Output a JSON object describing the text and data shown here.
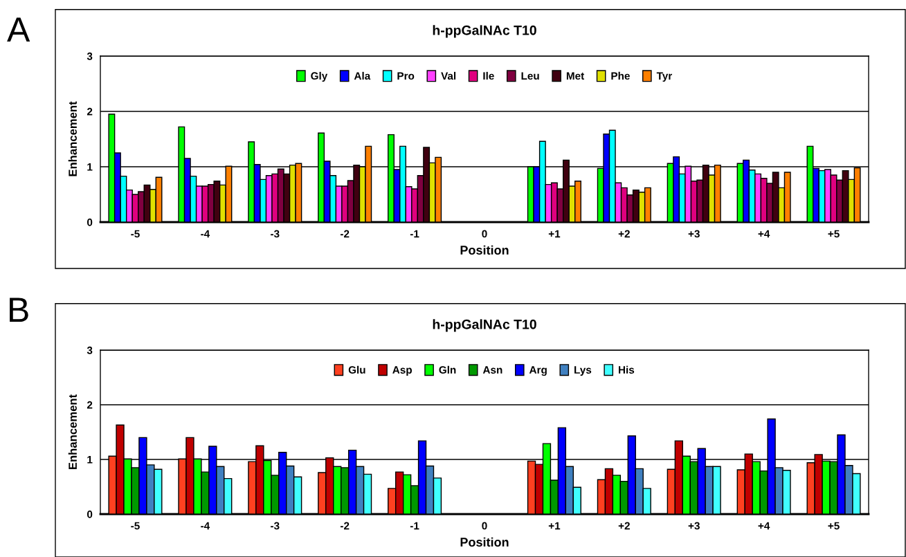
{
  "chart_data": [
    {
      "type": "bar",
      "title": "h-ppGalNAc T10",
      "xlabel": "Position",
      "ylabel": "Enhancement",
      "annotations": [
        "A"
      ],
      "categories": [
        "-5",
        "-4",
        "-3",
        "-2",
        "-1",
        "0",
        "+1",
        "+2",
        "+3",
        "+4",
        "+5"
      ],
      "ylim": [
        0,
        3
      ],
      "yticks": [
        0,
        1,
        2,
        3
      ],
      "grid": "y",
      "legend": "top",
      "series": [
        {
          "name": "Gly",
          "color": "#00ff00",
          "values": [
            1.95,
            1.72,
            1.45,
            1.61,
            1.58,
            null,
            1.0,
            0.97,
            1.06,
            1.06,
            1.37
          ]
        },
        {
          "name": "Ala",
          "color": "#0000ff",
          "values": [
            1.25,
            1.15,
            1.04,
            1.1,
            0.95,
            null,
            1.0,
            1.59,
            1.18,
            1.12,
            0.97
          ]
        },
        {
          "name": "Pro",
          "color": "#00ffff",
          "values": [
            0.83,
            0.83,
            0.77,
            0.84,
            1.37,
            null,
            1.46,
            1.66,
            0.87,
            0.94,
            0.93
          ]
        },
        {
          "name": "Val",
          "color": "#ff40ff",
          "values": [
            0.58,
            0.65,
            0.84,
            0.65,
            0.64,
            null,
            0.68,
            0.71,
            1.01,
            0.87,
            0.95
          ]
        },
        {
          "name": "Ile",
          "color": "#e0007f",
          "values": [
            0.5,
            0.65,
            0.87,
            0.65,
            0.6,
            null,
            0.71,
            0.62,
            0.74,
            0.79,
            0.85
          ]
        },
        {
          "name": "Leu",
          "color": "#800040",
          "values": [
            0.55,
            0.68,
            0.96,
            0.75,
            0.84,
            null,
            0.6,
            0.49,
            0.76,
            0.7,
            0.76
          ]
        },
        {
          "name": "Met",
          "color": "#400010",
          "values": [
            0.67,
            0.74,
            0.87,
            1.03,
            1.35,
            null,
            1.12,
            0.58,
            1.03,
            0.9,
            0.93
          ]
        },
        {
          "name": "Phe",
          "color": "#e0e000",
          "values": [
            0.59,
            0.67,
            1.03,
            1.0,
            1.07,
            null,
            0.65,
            0.54,
            0.85,
            0.62,
            0.77
          ]
        },
        {
          "name": "Tyr",
          "color": "#ff8000",
          "values": [
            0.81,
            1.01,
            1.06,
            1.37,
            1.17,
            null,
            0.74,
            0.62,
            1.03,
            0.9,
            0.98
          ]
        }
      ]
    },
    {
      "type": "bar",
      "title": "h-ppGalNAc T10",
      "xlabel": "Position",
      "ylabel": "Enhancement",
      "annotations": [
        "B"
      ],
      "categories": [
        "-5",
        "-4",
        "-3",
        "-2",
        "-1",
        "0",
        "+1",
        "+2",
        "+3",
        "+4",
        "+5"
      ],
      "ylim": [
        0,
        3
      ],
      "yticks": [
        0,
        1,
        2,
        3
      ],
      "grid": "y",
      "legend": "top",
      "series": [
        {
          "name": "Glu",
          "color": "#ff4020",
          "values": [
            1.06,
            1.01,
            0.96,
            0.76,
            0.47,
            null,
            0.97,
            0.63,
            0.82,
            0.81,
            0.94
          ]
        },
        {
          "name": "Asp",
          "color": "#c00000",
          "values": [
            1.63,
            1.4,
            1.25,
            1.03,
            0.77,
            null,
            0.91,
            0.83,
            1.34,
            1.1,
            1.09
          ]
        },
        {
          "name": "Gln",
          "color": "#00ff00",
          "values": [
            1.01,
            1.01,
            0.98,
            0.87,
            0.72,
            null,
            1.29,
            0.71,
            1.06,
            0.96,
            0.97
          ]
        },
        {
          "name": "Asn",
          "color": "#009900",
          "values": [
            0.85,
            0.77,
            0.71,
            0.85,
            0.52,
            null,
            0.62,
            0.6,
            0.96,
            0.79,
            0.96
          ]
        },
        {
          "name": "Arg",
          "color": "#0000ff",
          "values": [
            1.4,
            1.24,
            1.13,
            1.17,
            1.34,
            null,
            1.58,
            1.43,
            1.2,
            1.74,
            1.45
          ]
        },
        {
          "name": "Lys",
          "color": "#4080c0",
          "values": [
            0.9,
            0.87,
            0.88,
            0.87,
            0.88,
            null,
            0.87,
            0.83,
            0.87,
            0.85,
            0.89
          ]
        },
        {
          "name": "His",
          "color": "#40ffff",
          "values": [
            0.82,
            0.65,
            0.68,
            0.73,
            0.66,
            null,
            0.49,
            0.47,
            0.87,
            0.8,
            0.74
          ]
        }
      ]
    }
  ]
}
